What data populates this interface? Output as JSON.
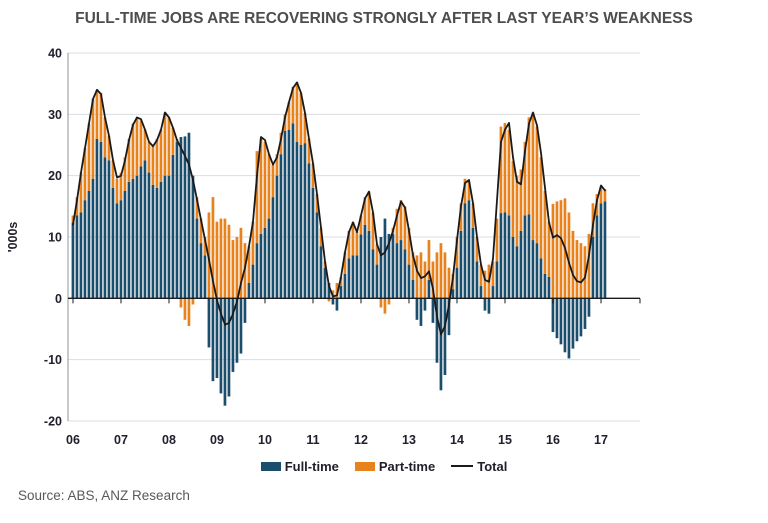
{
  "title": "FULL-TIME JOBS ARE RECOVERING STRONGLY AFTER LAST YEAR’S WEAKNESS",
  "source": "Source: ABS, ANZ Research",
  "colors": {
    "full_time": "#1b4d6d",
    "part_time": "#e8821d",
    "total_line": "#1a1a1a",
    "gridline": "#d9dde3",
    "axis": "#1a1a1a",
    "spine": "#8d949b",
    "title_text": "#4d4d4d",
    "axis_text": "#20202c",
    "source_text": "#595959",
    "background": "#ffffff"
  },
  "chart_data": {
    "type": "bar",
    "subtype": "stacked-bars-with-line-overlay",
    "title": "FULL-TIME JOBS ARE RECOVERING STRONGLY AFTER LAST YEAR’S WEAKNESS",
    "xlabel": "",
    "ylabel": "'000s",
    "x_unit": "month",
    "x_start": "2006-01",
    "x_end": "2017-02",
    "x_tick_labels": [
      "06",
      "07",
      "08",
      "09",
      "10",
      "11",
      "12",
      "13",
      "14",
      "15",
      "16",
      "17"
    ],
    "y_ticks": [
      40,
      30,
      20,
      10,
      0,
      -10,
      -20
    ],
    "ylim": [
      -20,
      40
    ],
    "grid": "horizontal",
    "legend_position": "bottom",
    "series": [
      {
        "name": "Full-time",
        "type": "bar",
        "color": "#1b4d6d",
        "values": [
          12.3,
          13.5,
          14,
          16,
          17.5,
          19.5,
          26,
          25.5,
          23,
          22.5,
          18,
          15.5,
          16,
          17.5,
          19,
          19.5,
          20,
          21.5,
          22.5,
          20.5,
          18.5,
          18,
          19,
          20,
          20,
          23.4,
          25.5,
          26.3,
          26.4,
          27,
          20,
          13,
          9,
          7,
          -8,
          -13.5,
          -13,
          -15.5,
          -17.5,
          -16,
          -12,
          -10.5,
          -9,
          -4,
          2.5,
          5.5,
          9,
          10.5,
          11.5,
          13,
          16.5,
          20,
          23.5,
          27.3,
          27.5,
          28.5,
          25.5,
          25,
          25.3,
          22,
          18,
          14,
          8.5,
          5,
          2.5,
          -1,
          -2,
          2,
          4,
          6.5,
          7,
          7,
          10.4,
          12,
          11,
          8,
          5.5,
          10,
          13,
          10.5,
          10.5,
          9,
          9.5,
          8,
          5.5,
          3,
          -3.5,
          -4.5,
          -2,
          3,
          -4,
          -10.5,
          -15,
          -12.5,
          -6,
          1.5,
          5,
          11,
          15.5,
          16,
          11.5,
          6,
          2,
          -2,
          -2.5,
          2,
          6,
          13.9,
          14,
          13.5,
          10,
          8.5,
          11,
          13.5,
          13.7,
          9.5,
          9,
          6.5,
          4,
          3.5,
          -5.5,
          -6.5,
          -7.5,
          -8.8,
          -9.8,
          -8.2,
          -7,
          -6.2,
          -5,
          -3,
          10,
          13.5,
          15.5,
          15.8
        ]
      },
      {
        "name": "Part-time",
        "type": "bar",
        "color": "#e8821d",
        "values": [
          1.2,
          3,
          6.5,
          8.5,
          11,
          13,
          8,
          8,
          6.5,
          4,
          4.5,
          4,
          4.5,
          5.5,
          7,
          9,
          9.5,
          7.5,
          5,
          5,
          6.5,
          8,
          8.5,
          10.3,
          9.5,
          4.4,
          0.5,
          -1.5,
          -3.5,
          -4.5,
          -1,
          3.5,
          4,
          3,
          14,
          16.5,
          12.5,
          13,
          13,
          12,
          9.5,
          10,
          11.5,
          9,
          6,
          7,
          15,
          15.5,
          14,
          10.5,
          5.3,
          3.5,
          3.5,
          2.7,
          4.5,
          6,
          9.7,
          8.5,
          4.9,
          4,
          4,
          3,
          3,
          1,
          -0.5,
          1.3,
          2.5,
          1.5,
          3.5,
          4.5,
          5.4,
          3.8,
          3.1,
          4.5,
          6.4,
          6,
          3.3,
          -1.5,
          -2.5,
          -1,
          1,
          5.6,
          6.5,
          7,
          6,
          4.5,
          7,
          7.5,
          6,
          6.5,
          6,
          7.5,
          9,
          7.5,
          5,
          2.5,
          5,
          4.5,
          4,
          3,
          4,
          4,
          3.5,
          4.5,
          5.5,
          4,
          7,
          14.1,
          14.6,
          14,
          12.4,
          11.5,
          10,
          12,
          15.8,
          20.8,
          19,
          16.5,
          13.5,
          9,
          15.4,
          15.8,
          16,
          16.3,
          14,
          11,
          9.5,
          9,
          8.5,
          10.5,
          5.5,
          3.5,
          2.8,
          2
        ]
      },
      {
        "name": "Total",
        "type": "line",
        "color": "#1a1a1a",
        "values": [
          12,
          16,
          20.5,
          24.5,
          28.5,
          32.5,
          34,
          33.3,
          29.5,
          26.5,
          22.5,
          19.7,
          20,
          22.5,
          25.8,
          28.3,
          29.5,
          29.2,
          27.5,
          25.5,
          24.8,
          25.8,
          27.5,
          30.3,
          29.5,
          27.8,
          25.8,
          24.5,
          23.2,
          21.8,
          19.3,
          16.1,
          12.8,
          9.6,
          6.3,
          2.8,
          -0.3,
          -2.5,
          -4.3,
          -4,
          -2.5,
          -0.5,
          2.5,
          5,
          8.5,
          12.5,
          20,
          26.3,
          25.8,
          23.5,
          21.8,
          23,
          26,
          29.5,
          32,
          34.3,
          35.2,
          33.5,
          30.2,
          26,
          22,
          17,
          11.5,
          6,
          2,
          0.3,
          0.5,
          3.5,
          7.5,
          10.8,
          12.4,
          10.8,
          13.5,
          16.3,
          17.4,
          14,
          8.8,
          7,
          7.5,
          9,
          11,
          13.5,
          15.8,
          14.8,
          11,
          7,
          4.5,
          3.3,
          3.6,
          4.4,
          1.5,
          -3,
          -5.9,
          -4.5,
          -1,
          3.5,
          9.5,
          15,
          18.8,
          19.3,
          15.5,
          10,
          5.5,
          3,
          2.7,
          6.5,
          16,
          25.5,
          27.5,
          28.6,
          23,
          19,
          18.6,
          24,
          28.5,
          30.3,
          28.2,
          23.7,
          18,
          12.4,
          9.9,
          10.3,
          9.8,
          8.2,
          5.8,
          3.8,
          2.8,
          2.6,
          3.4,
          7,
          12,
          16,
          18.4,
          17.6
        ]
      }
    ]
  }
}
